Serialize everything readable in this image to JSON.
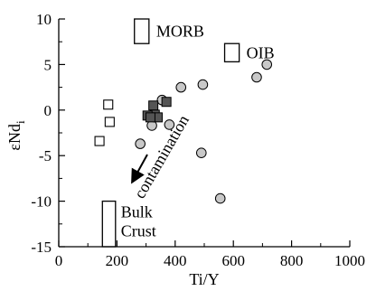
{
  "chart_data": {
    "type": "scatter",
    "title": "",
    "xlabel": "Ti/Y",
    "ylabel": "εNd",
    "ylabel_sub": "i",
    "xlim": [
      0,
      1000
    ],
    "ylim": [
      -15,
      10
    ],
    "xticks": [
      0,
      200,
      400,
      600,
      800,
      1000
    ],
    "yticks": [
      10,
      5,
      0,
      -5,
      -10,
      -15
    ],
    "grid": false,
    "series": [
      {
        "marker": "circle-gray",
        "points": [
          [
            320,
            -1.7
          ],
          [
            355,
            1.1
          ],
          [
            380,
            -1.6
          ],
          [
            420,
            2.5
          ],
          [
            495,
            2.8
          ],
          [
            280,
            -3.7
          ],
          [
            490,
            -4.7
          ],
          [
            555,
            -9.7
          ],
          [
            680,
            3.6
          ],
          [
            715,
            5.0
          ]
        ]
      },
      {
        "marker": "square-dark",
        "points": [
          [
            325,
            0.5
          ],
          [
            330,
            -0.5
          ],
          [
            340,
            -0.8
          ],
          [
            305,
            -0.6
          ],
          [
            315,
            -0.8
          ],
          [
            370,
            0.9
          ]
        ]
      },
      {
        "marker": "square-open",
        "points": [
          [
            170,
            0.6
          ],
          [
            175,
            -1.3
          ],
          [
            140,
            -3.4
          ]
        ]
      }
    ],
    "fields": [
      {
        "label": "MORB",
        "x0": 260,
        "x1": 310,
        "y0": 7.3,
        "y1": 10
      },
      {
        "label": "OIB",
        "x0": 570,
        "x1": 620,
        "y0": 5.3,
        "y1": 7.3
      },
      {
        "label_lines": [
          "Bulk",
          "Crust"
        ],
        "x0": 150,
        "x1": 195,
        "y0": -15,
        "y1": -10
      }
    ],
    "annotations": [
      {
        "text": "contamination",
        "arrow": true
      }
    ]
  }
}
